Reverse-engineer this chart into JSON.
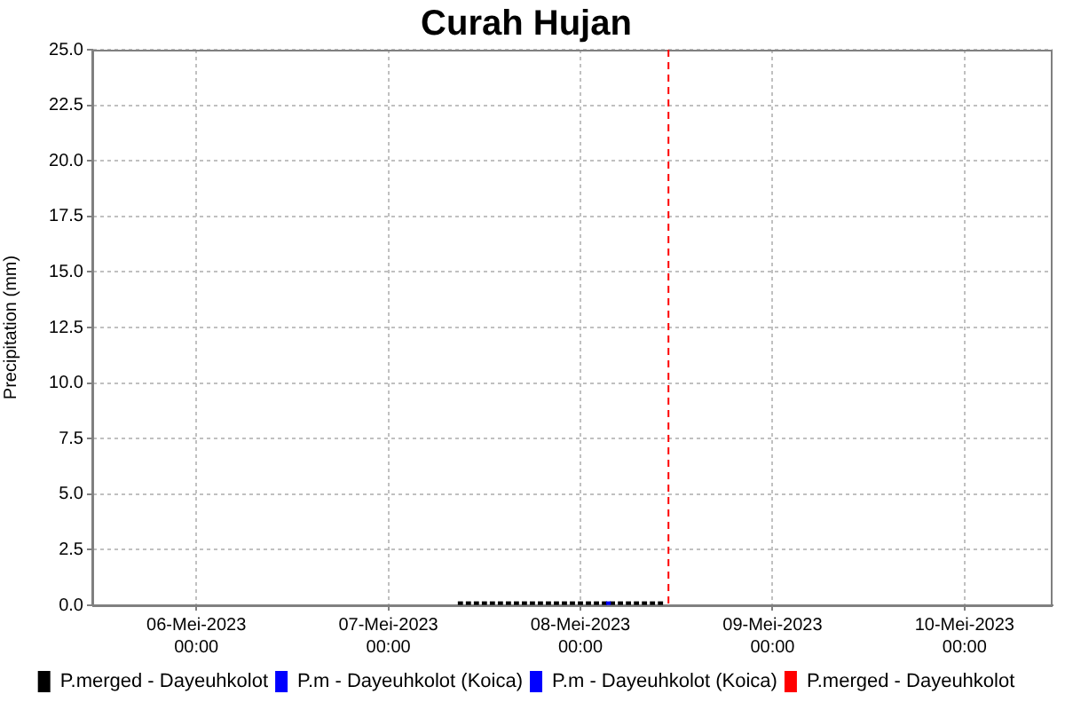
{
  "chart_data": {
    "type": "bar",
    "title": "Curah Hujan",
    "ylabel": "Precipitation (mm)",
    "xlim": [
      "2023-05-05T11:00",
      "2023-05-10T11:00"
    ],
    "xticks": [
      {
        "value": "2023-05-06T00:00",
        "label": "06-Mei-2023 00:00"
      },
      {
        "value": "2023-05-07T00:00",
        "label": "07-Mei-2023 00:00"
      },
      {
        "value": "2023-05-08T00:00",
        "label": "08-Mei-2023 00:00"
      },
      {
        "value": "2023-05-09T00:00",
        "label": "09-Mei-2023 00:00"
      },
      {
        "value": "2023-05-10T00:00",
        "label": "10-Mei-2023 00:00"
      }
    ],
    "ylim": [
      0,
      25
    ],
    "yticks": [
      {
        "value": 0,
        "label": "0.0"
      },
      2.5,
      {
        "value": 5,
        "label": "5.0"
      },
      7.5,
      {
        "value": 10,
        "label": "10.0"
      },
      12.5,
      {
        "value": 15,
        "label": "15.0"
      },
      17.5,
      {
        "value": 20,
        "label": "20.0"
      },
      22.5,
      {
        "value": 25,
        "label": "25.0"
      }
    ],
    "series": [
      {
        "name": "P.merged - Dayeuhkolot",
        "color": "#000000",
        "x": [
          "2023-05-07T09:00",
          "2023-05-07T10:00",
          "2023-05-07T11:00",
          "2023-05-07T12:00",
          "2023-05-07T13:00",
          "2023-05-07T14:00",
          "2023-05-07T15:00",
          "2023-05-07T16:00",
          "2023-05-07T17:00",
          "2023-05-07T18:00",
          "2023-05-07T19:00",
          "2023-05-07T20:00",
          "2023-05-07T21:00",
          "2023-05-07T22:00",
          "2023-05-07T23:00",
          "2023-05-08T00:00",
          "2023-05-08T01:00",
          "2023-05-08T02:00",
          "2023-05-08T03:00",
          "2023-05-08T04:00",
          "2023-05-08T05:00",
          "2023-05-08T06:00",
          "2023-05-08T07:00",
          "2023-05-08T08:00",
          "2023-05-08T09:00",
          "2023-05-08T10:00"
        ],
        "values": [
          0.15,
          0.15,
          0.15,
          0.15,
          0.15,
          0.15,
          0.15,
          0.15,
          0.15,
          0.15,
          0.15,
          0.15,
          0.15,
          0.15,
          0.15,
          0.15,
          0.15,
          0.15,
          0.15,
          0.15,
          0.15,
          0.15,
          0.15,
          0.15,
          0.15,
          0.15
        ]
      },
      {
        "name": "P.m - Dayeuhkolot (Koica)",
        "color": "#0000ff",
        "x": [
          "2023-05-08T03:30"
        ],
        "values": [
          0.15
        ]
      },
      {
        "name": "P.m - Dayeuhkolot (Koica)",
        "color": "#0000ff"
      },
      {
        "name": "P.merged - Dayeuhkolot",
        "color": "#ff0000"
      }
    ],
    "ref_lines": [
      {
        "axis": "x",
        "value": "2023-05-08T11:00",
        "color": "#ff0000",
        "line_style": "dashed"
      }
    ],
    "grid": true,
    "legend": "bottom"
  }
}
